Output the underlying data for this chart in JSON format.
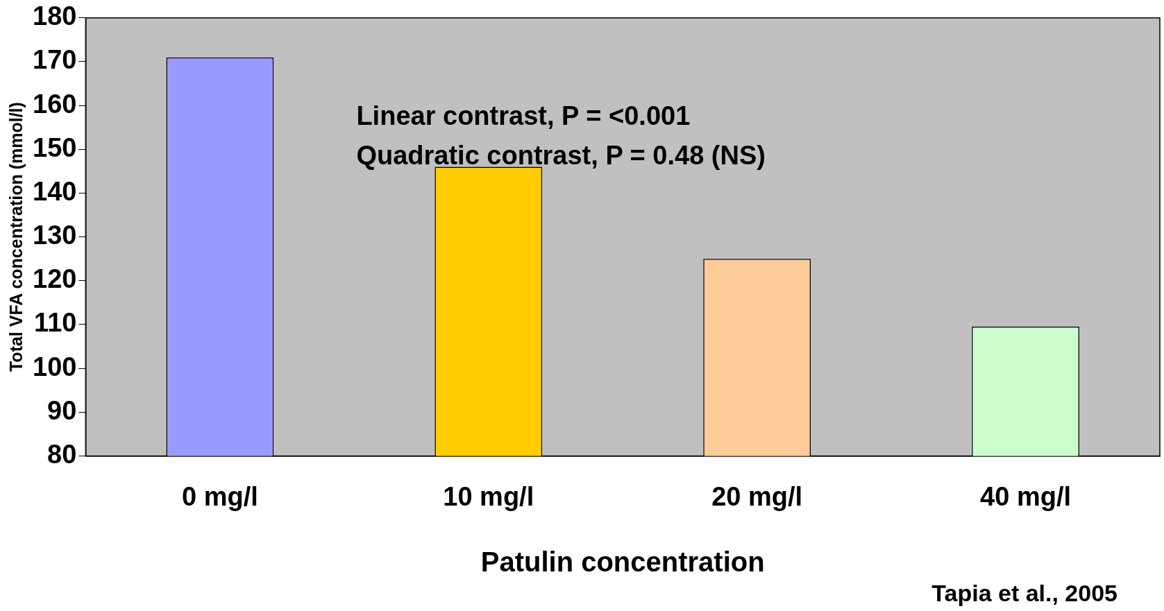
{
  "chart_data": {
    "type": "bar",
    "xlabel": "Patulin concentration",
    "ylabel": "Total VFA concentration (mmol/l)",
    "categories": [
      "0 mg/l",
      "10 mg/l",
      "20 mg/l",
      "40 mg/l"
    ],
    "values": [
      171,
      146,
      125,
      109.5
    ],
    "colors": [
      "#9999ff",
      "#ffcc00",
      "#ffcc99",
      "#ccffcc"
    ],
    "ylim": [
      80,
      180
    ],
    "yticks": [
      80,
      90,
      100,
      110,
      120,
      130,
      140,
      150,
      160,
      170,
      180
    ],
    "grid": false,
    "legend": false,
    "annotations": [
      "Linear contrast, P = <0.001",
      "Quadratic contrast, P = 0.48 (NS)",
      "Tapia et al., 2005"
    ]
  }
}
